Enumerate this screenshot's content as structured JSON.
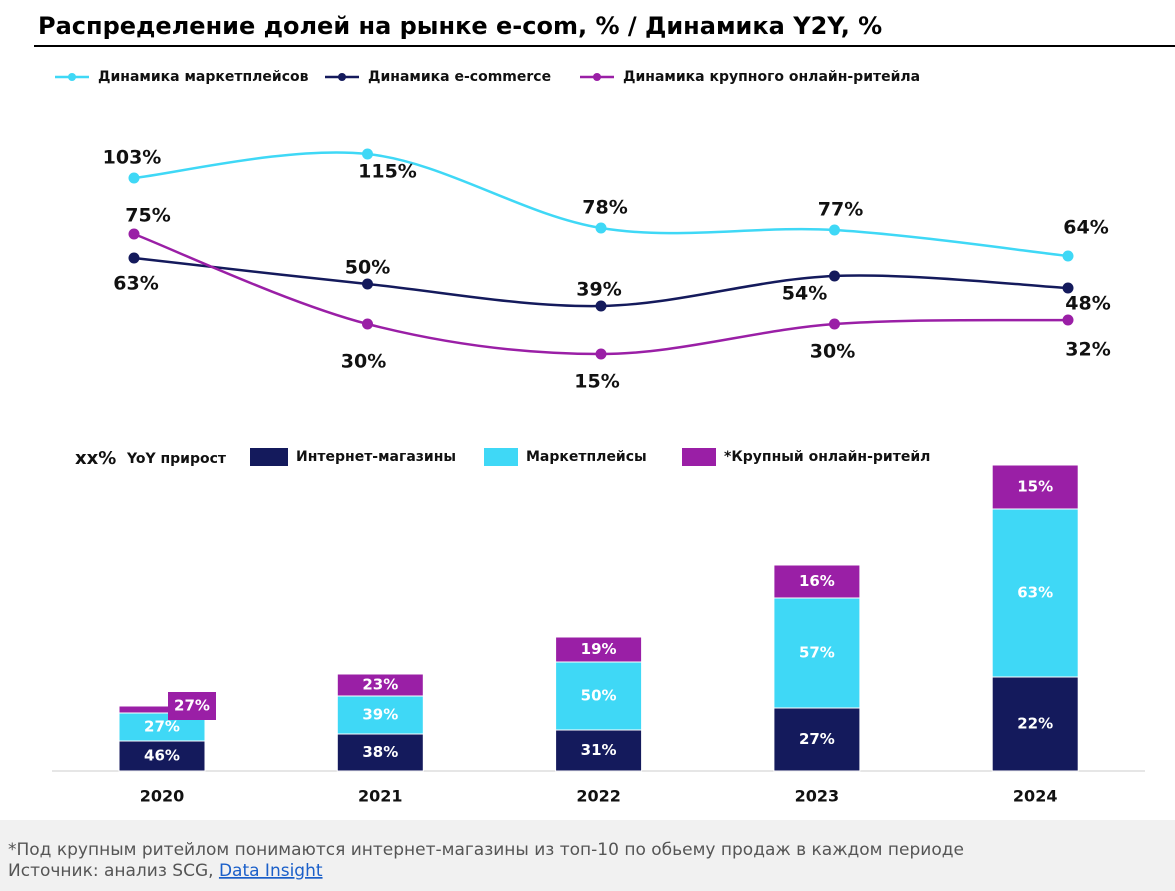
{
  "header": {
    "title": "Распределение долей на рынке e-com, % / Динамика Y2Y, %"
  },
  "chart_data": [
    {
      "type": "line",
      "categories": [
        "2020",
        "2021",
        "2022",
        "2023",
        "2024"
      ],
      "series": [
        {
          "name": "Динамика маркетплейсов",
          "color": "#3fd8f6",
          "values": [
            103,
            115,
            78,
            77,
            64
          ],
          "value_labels": [
            "103%",
            "115%",
            "78%",
            "77%",
            "64%"
          ]
        },
        {
          "name": "Динамика e-commerce",
          "color": "#141a5c",
          "values": [
            63,
            50,
            39,
            54,
            48
          ],
          "value_labels": [
            "63%",
            "50%",
            "39%",
            "54%",
            "48%"
          ]
        },
        {
          "name": "Динамика крупного онлайн-ритейла",
          "color": "#9a1fa6",
          "values": [
            75,
            30,
            15,
            30,
            32
          ],
          "value_labels": [
            "75%",
            "30%",
            "15%",
            "30%",
            "32%"
          ]
        }
      ]
    },
    {
      "type": "stacked_bar",
      "categories": [
        "2020",
        "2021",
        "2022",
        "2023",
        "2024"
      ],
      "legend_note": "xx%",
      "legend_note_text": "YoY прирост",
      "series": [
        {
          "name": "Интернет-магазины",
          "color": "#141a5c",
          "values": [
            30,
            37,
            41,
            63,
            94
          ],
          "labels": [
            "46%",
            "38%",
            "31%",
            "27%",
            "22%"
          ]
        },
        {
          "name": "Маркетплейсы",
          "color": "#3fd8f6",
          "values": [
            28,
            38,
            68,
            110,
            168
          ],
          "labels": [
            "27%",
            "39%",
            "50%",
            "57%",
            "63%"
          ]
        },
        {
          "name": "*Крупный онлайн-ритейл",
          "color": "#9a1fa6",
          "values": [
            7,
            22,
            25,
            33,
            44
          ],
          "labels": [
            "27%",
            "23%",
            "19%",
            "16%",
            "15%"
          ]
        }
      ]
    }
  ],
  "footer": {
    "note": "*Под крупным ритейлом понимаются интернет-магазины из топ-10 по обьему продаж в каждом периоде",
    "source_prefix": "Источник: анализ SCG,",
    "source_link": "Data Insight"
  }
}
